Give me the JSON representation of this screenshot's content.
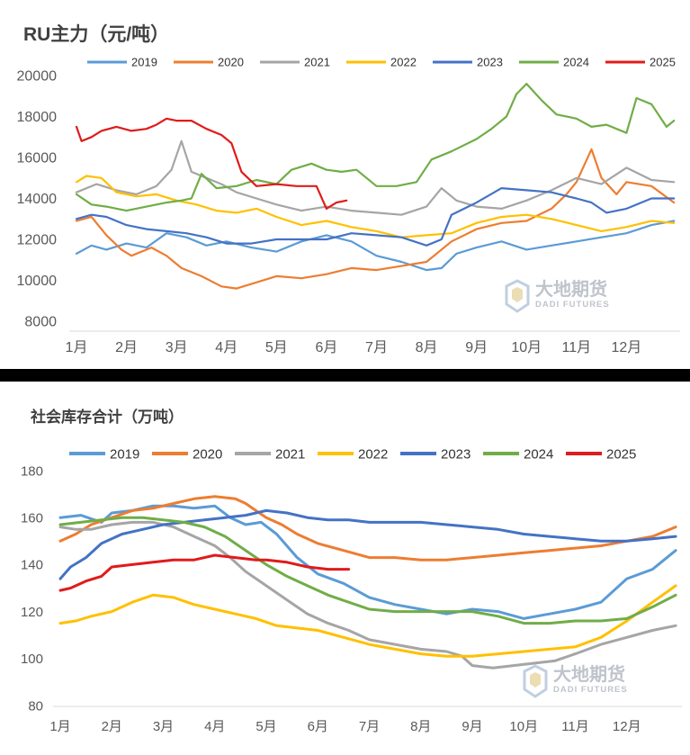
{
  "colors": {
    "2019": "#5b9bd5",
    "2020": "#ed7d31",
    "2021": "#a5a5a5",
    "2022": "#ffc000",
    "2023": "#4472c4",
    "2024": "#70ad47",
    "2025": "#e01b1b"
  },
  "watermark": {
    "cn": "大地期货",
    "en": "DADI FUTURES"
  },
  "months": [
    "1月",
    "2月",
    "3月",
    "4月",
    "5月",
    "6月",
    "7月",
    "8月",
    "9月",
    "10月",
    "11月",
    "12月"
  ],
  "chart_data": [
    {
      "type": "line",
      "title": "RU主力（元/吨）",
      "xlabel": "",
      "ylabel": "",
      "ylim": [
        8000,
        20000
      ],
      "yticks": [
        8000,
        10000,
        12000,
        14000,
        16000,
        18000,
        20000
      ],
      "grid": false,
      "legend": "top",
      "x_unit": "month (1 = start of 1月)",
      "series": [
        {
          "name": "2019",
          "x": [
            1.0,
            1.3,
            1.6,
            2.0,
            2.4,
            2.8,
            3.2,
            3.6,
            4.0,
            4.5,
            5.0,
            5.5,
            6.0,
            6.5,
            7.0,
            7.5,
            8.0,
            8.3,
            8.6,
            9.0,
            9.5,
            10.0,
            10.5,
            11.0,
            11.5,
            12.0,
            12.5,
            12.95
          ],
          "values": [
            11300,
            11700,
            11500,
            11800,
            11600,
            12300,
            12100,
            11700,
            11900,
            11600,
            11400,
            11900,
            12200,
            11900,
            11200,
            10900,
            10500,
            10600,
            11300,
            11600,
            11900,
            11500,
            11700,
            11900,
            12100,
            12300,
            12700,
            12900
          ]
        },
        {
          "name": "2020",
          "x": [
            1.0,
            1.3,
            1.6,
            1.9,
            2.1,
            2.5,
            2.8,
            3.1,
            3.5,
            3.9,
            4.2,
            4.6,
            5.0,
            5.5,
            6.0,
            6.5,
            7.0,
            7.5,
            8.0,
            8.5,
            9.0,
            9.5,
            10.0,
            10.5,
            10.8,
            11.0,
            11.3,
            11.5,
            11.8,
            12.0,
            12.5,
            12.95
          ],
          "values": [
            12900,
            13100,
            12200,
            11500,
            11200,
            11600,
            11200,
            10600,
            10200,
            9700,
            9600,
            9900,
            10200,
            10100,
            10300,
            10600,
            10500,
            10700,
            10900,
            11900,
            12500,
            12800,
            12900,
            13500,
            14200,
            14800,
            16400,
            15000,
            14200,
            14800,
            14600,
            13800
          ]
        },
        {
          "name": "2021",
          "x": [
            1.0,
            1.4,
            1.8,
            2.2,
            2.6,
            2.9,
            3.1,
            3.3,
            3.6,
            3.9,
            4.2,
            4.6,
            5.0,
            5.5,
            6.0,
            6.5,
            7.0,
            7.5,
            8.0,
            8.3,
            8.6,
            9.0,
            9.5,
            10.0,
            10.5,
            11.0,
            11.5,
            12.0,
            12.5,
            12.95
          ],
          "values": [
            14300,
            14700,
            14400,
            14200,
            14600,
            15400,
            16800,
            15300,
            15000,
            14700,
            14300,
            14000,
            13700,
            13400,
            13600,
            13400,
            13300,
            13200,
            13600,
            14500,
            13900,
            13600,
            13500,
            13900,
            14400,
            15000,
            14700,
            15500,
            14900,
            14800
          ]
        },
        {
          "name": "2022",
          "x": [
            1.0,
            1.2,
            1.5,
            1.8,
            2.2,
            2.6,
            3.0,
            3.4,
            3.8,
            4.2,
            4.6,
            5.0,
            5.5,
            6.0,
            6.5,
            7.0,
            7.5,
            8.0,
            8.5,
            9.0,
            9.5,
            10.0,
            10.5,
            11.0,
            11.5,
            12.0,
            12.5,
            12.95
          ],
          "values": [
            14800,
            15100,
            15000,
            14300,
            14100,
            14200,
            13900,
            13700,
            13400,
            13300,
            13500,
            13100,
            12700,
            12900,
            12600,
            12400,
            12100,
            12200,
            12300,
            12800,
            13100,
            13200,
            13000,
            12700,
            12400,
            12600,
            12900,
            12800
          ]
        },
        {
          "name": "2023",
          "x": [
            1.0,
            1.3,
            1.6,
            2.0,
            2.4,
            2.8,
            3.2,
            3.6,
            4.0,
            4.5,
            5.0,
            5.5,
            6.0,
            6.5,
            7.0,
            7.5,
            8.0,
            8.3,
            8.5,
            9.0,
            9.5,
            10.0,
            10.5,
            11.0,
            11.3,
            11.6,
            12.0,
            12.5,
            12.95
          ],
          "values": [
            13000,
            13200,
            13100,
            12700,
            12500,
            12400,
            12300,
            12100,
            11800,
            11800,
            12000,
            12000,
            12000,
            12300,
            12200,
            12100,
            11700,
            12000,
            13200,
            13800,
            14500,
            14400,
            14300,
            14000,
            13800,
            13300,
            13500,
            14000,
            14000
          ]
        },
        {
          "name": "2024",
          "x": [
            1.0,
            1.3,
            1.6,
            2.0,
            2.4,
            2.8,
            3.1,
            3.3,
            3.5,
            3.8,
            4.2,
            4.6,
            5.0,
            5.3,
            5.7,
            6.0,
            6.3,
            6.6,
            7.0,
            7.4,
            7.8,
            8.1,
            8.5,
            9.0,
            9.3,
            9.6,
            9.8,
            10.0,
            10.3,
            10.6,
            11.0,
            11.3,
            11.6,
            12.0,
            12.2,
            12.5,
            12.8,
            12.95
          ],
          "values": [
            14200,
            13700,
            13600,
            13400,
            13600,
            13800,
            13900,
            14000,
            15200,
            14500,
            14600,
            14900,
            14700,
            15400,
            15700,
            15400,
            15300,
            15400,
            14600,
            14600,
            14800,
            15900,
            16300,
            16900,
            17400,
            18000,
            19100,
            19600,
            18800,
            18100,
            17900,
            17500,
            17600,
            17200,
            18900,
            18600,
            17500,
            17800
          ]
        },
        {
          "name": "2025",
          "x": [
            1.0,
            1.1,
            1.3,
            1.5,
            1.8,
            2.1,
            2.4,
            2.6,
            2.8,
            3.0,
            3.3,
            3.6,
            3.9,
            4.1,
            4.3,
            4.6,
            5.0,
            5.4,
            5.8,
            6.0,
            6.2,
            6.4
          ],
          "values": [
            17500,
            16800,
            17000,
            17300,
            17500,
            17300,
            17400,
            17600,
            17900,
            17800,
            17800,
            17400,
            17100,
            16700,
            15300,
            14600,
            14700,
            14600,
            14600,
            13500,
            13800,
            13900
          ]
        }
      ]
    },
    {
      "type": "line",
      "title": "社会库存合计（万吨）",
      "xlabel": "",
      "ylabel": "",
      "ylim": [
        80,
        180
      ],
      "yticks": [
        80,
        100,
        120,
        140,
        160,
        180
      ],
      "grid": false,
      "legend": "top",
      "x_unit": "month (1 = start of 1月)",
      "series": [
        {
          "name": "2019",
          "x": [
            1.0,
            1.4,
            1.8,
            2.0,
            2.4,
            2.8,
            3.2,
            3.6,
            4.0,
            4.3,
            4.6,
            4.9,
            5.2,
            5.6,
            6.0,
            6.5,
            7.0,
            7.5,
            8.0,
            8.5,
            9.0,
            9.5,
            10.0,
            10.5,
            11.0,
            11.5,
            12.0,
            12.5,
            12.95
          ],
          "values": [
            160,
            161,
            158,
            162,
            163,
            165,
            165,
            164,
            165,
            160,
            157,
            158,
            153,
            143,
            136,
            132,
            126,
            123,
            121,
            119,
            121,
            120,
            117,
            119,
            121,
            124,
            134,
            138,
            146
          ]
        },
        {
          "name": "2020",
          "x": [
            1.0,
            1.3,
            1.6,
            2.0,
            2.4,
            2.8,
            3.2,
            3.6,
            4.0,
            4.4,
            4.6,
            4.8,
            5.0,
            5.3,
            5.6,
            6.0,
            6.5,
            7.0,
            7.5,
            8.0,
            8.5,
            9.0,
            9.5,
            10.0,
            10.5,
            11.0,
            11.5,
            12.0,
            12.5,
            12.95
          ],
          "values": [
            150,
            153,
            157,
            160,
            163,
            164,
            166,
            168,
            169,
            168,
            166,
            163,
            160,
            157,
            153,
            149,
            146,
            143,
            143,
            142,
            142,
            143,
            144,
            145,
            146,
            147,
            148,
            150,
            152,
            156
          ]
        },
        {
          "name": "2021",
          "x": [
            1.0,
            1.3,
            1.6,
            2.0,
            2.4,
            2.8,
            3.2,
            3.6,
            4.0,
            4.3,
            4.6,
            5.0,
            5.4,
            5.8,
            6.2,
            6.6,
            7.0,
            7.5,
            8.0,
            8.5,
            8.8,
            9.0,
            9.4,
            9.8,
            10.2,
            10.6,
            11.0,
            11.5,
            12.0,
            12.5,
            12.95
          ],
          "values": [
            156,
            155,
            155,
            157,
            158,
            158,
            156,
            152,
            148,
            143,
            137,
            131,
            125,
            119,
            115,
            112,
            108,
            106,
            104,
            103,
            101,
            97,
            96,
            97,
            98,
            99,
            102,
            106,
            109,
            112,
            114
          ]
        },
        {
          "name": "2022",
          "x": [
            1.0,
            1.3,
            1.6,
            2.0,
            2.4,
            2.8,
            3.2,
            3.6,
            4.0,
            4.4,
            4.8,
            5.2,
            5.6,
            6.0,
            6.5,
            7.0,
            7.5,
            8.0,
            8.5,
            9.0,
            9.5,
            10.0,
            10.5,
            11.0,
            11.5,
            12.0,
            12.5,
            12.95
          ],
          "values": [
            115,
            116,
            118,
            120,
            124,
            127,
            126,
            123,
            121,
            119,
            117,
            114,
            113,
            112,
            109,
            106,
            104,
            102,
            101,
            101,
            102,
            103,
            104,
            105,
            109,
            116,
            124,
            131
          ]
        },
        {
          "name": "2023",
          "x": [
            1.0,
            1.2,
            1.5,
            1.8,
            2.2,
            2.6,
            3.0,
            3.4,
            3.8,
            4.2,
            4.6,
            5.0,
            5.4,
            5.8,
            6.2,
            6.6,
            7.0,
            7.5,
            8.0,
            8.5,
            9.0,
            9.5,
            10.0,
            10.5,
            11.0,
            11.5,
            12.0,
            12.5,
            12.95
          ],
          "values": [
            134,
            139,
            143,
            149,
            153,
            155,
            157,
            158,
            159,
            160,
            161,
            163,
            162,
            160,
            159,
            159,
            158,
            158,
            158,
            157,
            156,
            155,
            153,
            152,
            151,
            150,
            150,
            151,
            152
          ]
        },
        {
          "name": "2024",
          "x": [
            1.0,
            1.4,
            1.8,
            2.2,
            2.6,
            3.0,
            3.4,
            3.8,
            4.2,
            4.6,
            5.0,
            5.4,
            5.8,
            6.2,
            6.6,
            7.0,
            7.5,
            8.0,
            8.5,
            9.0,
            9.5,
            10.0,
            10.5,
            11.0,
            11.5,
            12.0,
            12.5,
            12.95
          ],
          "values": [
            157,
            158,
            159,
            160,
            160,
            159,
            158,
            156,
            152,
            146,
            140,
            135,
            131,
            127,
            124,
            121,
            120,
            120,
            120,
            120,
            118,
            115,
            115,
            116,
            116,
            117,
            122,
            127
          ]
        },
        {
          "name": "2025",
          "x": [
            1.0,
            1.2,
            1.5,
            1.8,
            2.0,
            2.4,
            2.8,
            3.2,
            3.6,
            4.0,
            4.4,
            4.8,
            5.0,
            5.4,
            5.8,
            6.2,
            6.6
          ],
          "values": [
            129,
            130,
            133,
            135,
            139,
            140,
            141,
            142,
            142,
            144,
            143,
            142,
            142,
            141,
            139,
            138,
            138
          ]
        }
      ]
    }
  ]
}
